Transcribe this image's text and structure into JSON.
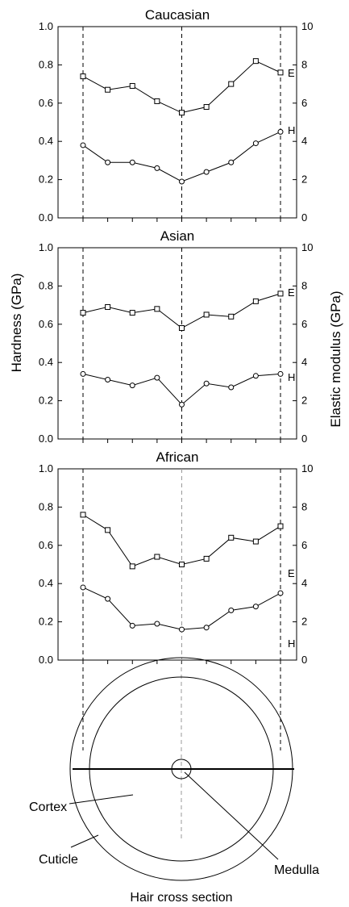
{
  "chart_data": [
    {
      "type": "line",
      "title": "Caucasian",
      "x": [
        1,
        2,
        3,
        4,
        5,
        6,
        7,
        8,
        9
      ],
      "ylim_left": [
        0,
        1.0
      ],
      "ylim_right": [
        0,
        10
      ],
      "yticks_left": [
        "0.0",
        "0.2",
        "0.4",
        "0.6",
        "0.8",
        "1.0"
      ],
      "yticks_right": [
        "0",
        "2",
        "4",
        "6",
        "8",
        "10"
      ],
      "series": [
        {
          "name": "E",
          "axis": "right",
          "marker": "square",
          "values": [
            7.4,
            6.7,
            6.9,
            6.1,
            5.5,
            5.8,
            7.0,
            8.2,
            7.6
          ]
        },
        {
          "name": "H",
          "axis": "left",
          "marker": "circle",
          "values": [
            0.38,
            0.29,
            0.29,
            0.26,
            0.19,
            0.24,
            0.29,
            0.39,
            0.45
          ]
        }
      ]
    },
    {
      "type": "line",
      "title": "Asian",
      "x": [
        1,
        2,
        3,
        4,
        5,
        6,
        7,
        8,
        9
      ],
      "ylim_left": [
        0,
        1.0
      ],
      "ylim_right": [
        0,
        10
      ],
      "yticks_left": [
        "0.0",
        "0.2",
        "0.4",
        "0.6",
        "0.8",
        "1.0"
      ],
      "yticks_right": [
        "0",
        "2",
        "4",
        "6",
        "8",
        "10"
      ],
      "series": [
        {
          "name": "E",
          "axis": "right",
          "marker": "square",
          "values": [
            6.6,
            6.9,
            6.6,
            6.8,
            5.8,
            6.5,
            6.4,
            7.2,
            7.6
          ]
        },
        {
          "name": "H",
          "axis": "left",
          "marker": "circle",
          "values": [
            0.34,
            0.31,
            0.28,
            0.32,
            0.18,
            0.29,
            0.27,
            0.33,
            0.34
          ]
        }
      ]
    },
    {
      "type": "line",
      "title": "African",
      "x": [
        1,
        2,
        3,
        4,
        5,
        6,
        7,
        8,
        9
      ],
      "ylim_left": [
        0,
        1.0
      ],
      "ylim_right": [
        0,
        10
      ],
      "yticks_left": [
        "0.0",
        "0.2",
        "0.4",
        "0.6",
        "0.8",
        "1.0"
      ],
      "yticks_right": [
        "0",
        "2",
        "4",
        "6",
        "8",
        "10"
      ],
      "series": [
        {
          "name": "E",
          "axis": "right",
          "marker": "square",
          "values": [
            7.6,
            6.8,
            4.9,
            5.4,
            5.0,
            5.3,
            6.4,
            6.2,
            7.0
          ]
        },
        {
          "name": "H",
          "axis": "left",
          "marker": "circle",
          "values": [
            0.38,
            0.32,
            0.18,
            0.19,
            0.16,
            0.17,
            0.26,
            0.28,
            0.35
          ]
        }
      ]
    }
  ],
  "axis_labels": {
    "left": "Hardness (GPa)",
    "right": "Elastic modulus (GPa)"
  },
  "diagram": {
    "labels": {
      "cortex": "Cortex",
      "cuticle": "Cuticle",
      "medulla": "Medulla"
    },
    "caption": "Hair cross section"
  }
}
